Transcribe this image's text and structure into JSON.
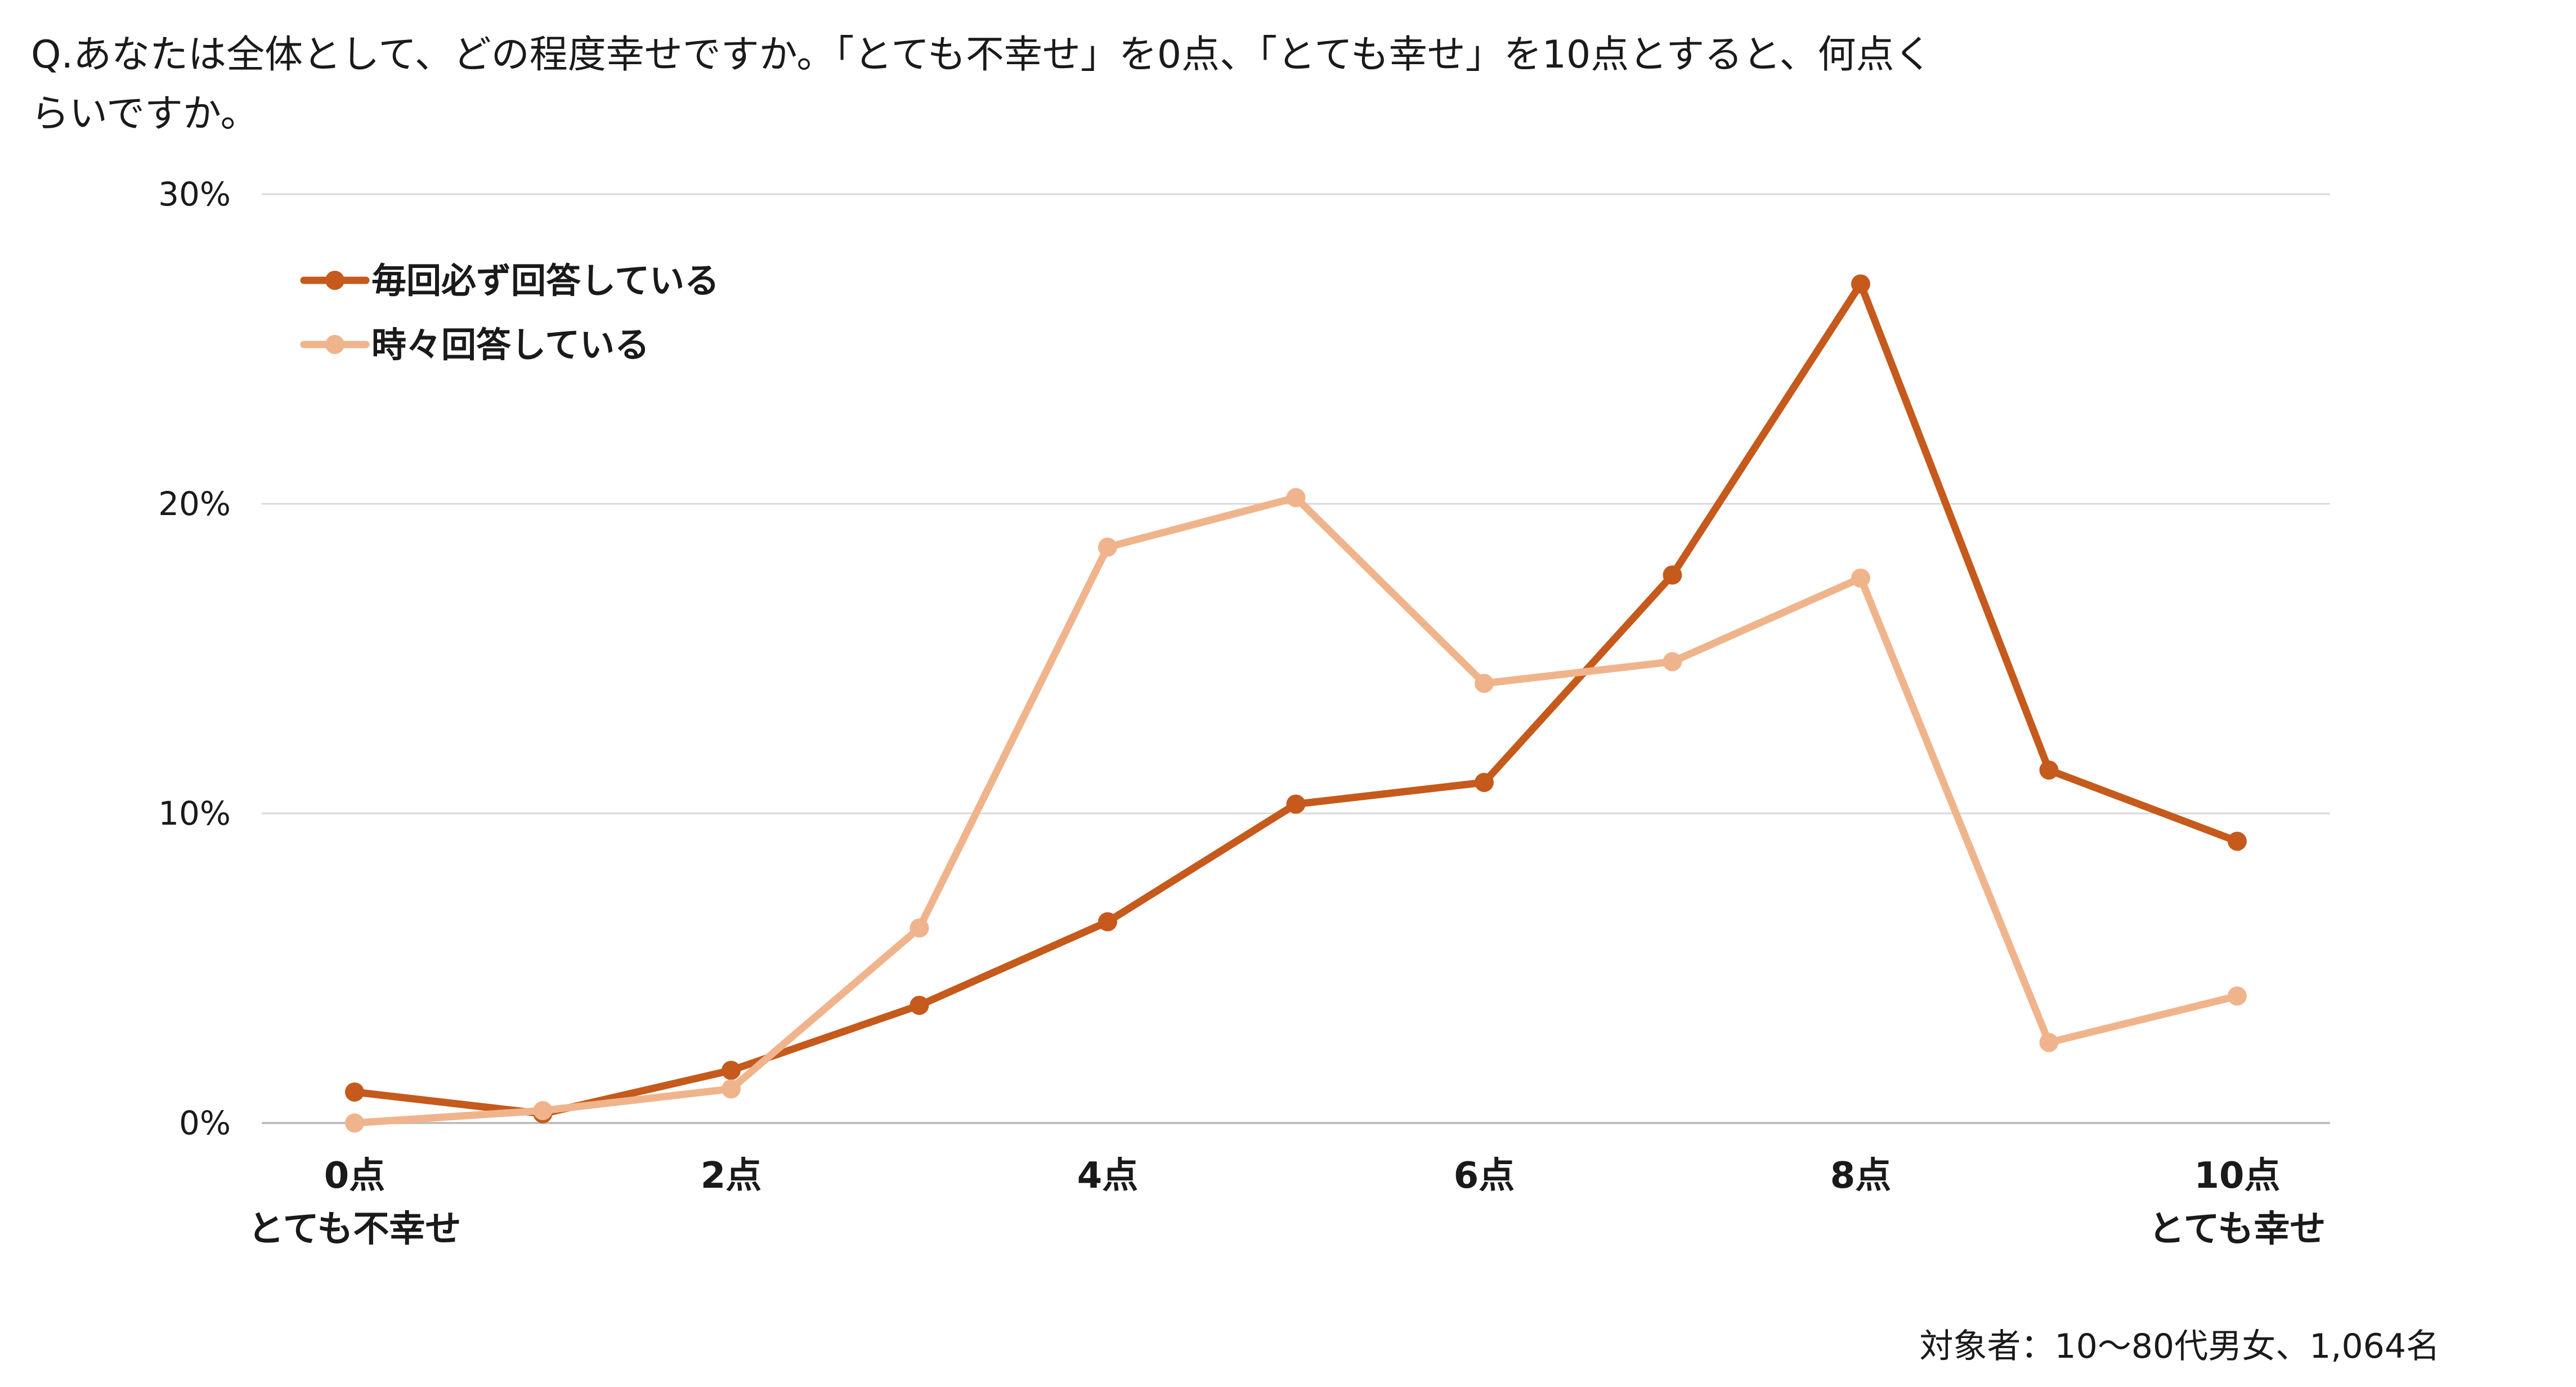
{
  "chart_data": {
    "type": "line",
    "title_lines": [
      "Q.あなたは全体として、どの程度幸せですか。「とても不幸せ」を0点、「とても幸せ」を10点とすると、何点く",
      "らいですか。"
    ],
    "x": [
      0,
      1,
      2,
      3,
      4,
      5,
      6,
      7,
      8,
      9,
      10
    ],
    "x_tick_labels": [
      {
        "x": 0,
        "line1": "0点",
        "line2": "とても不幸せ"
      },
      {
        "x": 2,
        "line1": "2点",
        "line2": ""
      },
      {
        "x": 4,
        "line1": "4点",
        "line2": ""
      },
      {
        "x": 6,
        "line1": "6点",
        "line2": ""
      },
      {
        "x": 8,
        "line1": "8点",
        "line2": ""
      },
      {
        "x": 10,
        "line1": "10点",
        "line2": "とても幸せ"
      }
    ],
    "y_ticks": [
      "0%",
      "10%",
      "20%",
      "30%"
    ],
    "ylim": [
      0,
      30
    ],
    "grid": "horizontal",
    "legend_position": "top-left",
    "series": [
      {
        "name": "毎回必ず回答している",
        "color": "#c55a1c",
        "values": [
          1.0,
          0.3,
          1.7,
          3.8,
          6.5,
          10.3,
          11.0,
          17.7,
          27.1,
          11.4,
          9.1
        ]
      },
      {
        "name": "時々回答している",
        "color": "#f0b48c",
        "values": [
          0.0,
          0.4,
          1.1,
          6.3,
          18.6,
          20.2,
          14.2,
          14.9,
          17.6,
          2.6,
          4.1
        ]
      }
    ],
    "note": "対象者：10〜80代男女、1,064名"
  }
}
